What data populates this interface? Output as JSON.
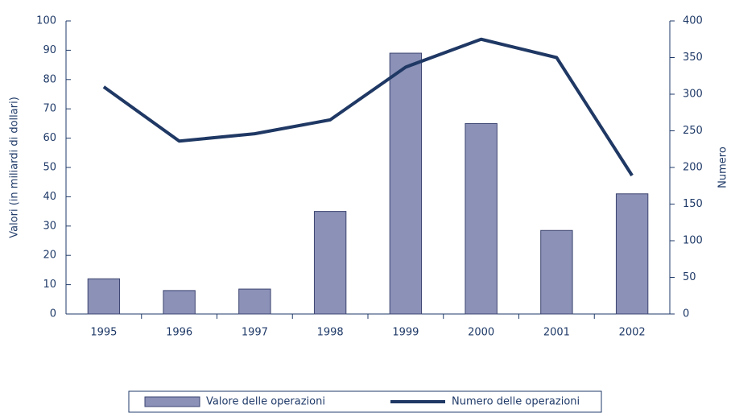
{
  "chart_data": {
    "type": "bar",
    "categories": [
      "1995",
      "1996",
      "1997",
      "1998",
      "1999",
      "2000",
      "2001",
      "2002"
    ],
    "series": [
      {
        "name": "Valore delle operazioni",
        "type": "bar",
        "axis": "y",
        "color": "#8b91b7",
        "values": [
          12,
          8,
          8.5,
          35,
          89,
          65,
          28.5,
          41
        ]
      },
      {
        "name": "Numero delle operazioni",
        "type": "line",
        "axis": "y2",
        "color": "#1f3864",
        "values": [
          310,
          236,
          246,
          265,
          337,
          375,
          350,
          189
        ]
      }
    ],
    "y_label": "Valori (in miliardi di dollari)",
    "y2_label": "Numero",
    "ylim": [
      0,
      100
    ],
    "yticks": [
      0,
      10,
      20,
      30,
      40,
      50,
      60,
      70,
      80,
      90,
      100
    ],
    "y2lim": [
      0,
      400
    ],
    "y2ticks": [
      0,
      50,
      100,
      150,
      200,
      250,
      300,
      350,
      400
    ],
    "legend": "bottom"
  }
}
